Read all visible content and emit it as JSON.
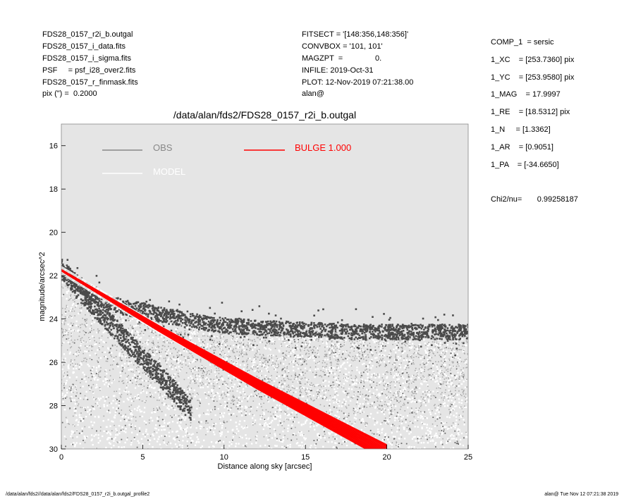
{
  "header_left": [
    "FDS28_0157_r2i_b.outgal",
    "FDS28_0157_i_data.fits",
    "FDS28_0157_i_sigma.fits",
    "PSF     = psf_i28_over2.fits",
    "FDS28_0157_r_finmask.fits",
    "pix (\") =  0.2000"
  ],
  "header_mid": [
    "FITSECT = '[148:356,148:356]'",
    "CONVBOX = '101, 101'",
    "MAGZPT  =               0.",
    "INFILE: 2019-Oct-31",
    "PLOT: 12-Nov-2019 07:21:38.00",
    "alan@"
  ],
  "header_right": [
    "COMP_1  = sersic",
    "1_XC    = [253.7360] pix",
    "1_YC    = [253.9580] pix",
    "1_MAG    = 17.9997",
    "1_RE    = [18.5312] pix",
    "1_N     = [1.3362]",
    "1_AR    = [0.9051]",
    "1_PA    = [-34.6650]",
    "",
    "Chi2/nu=       0.99258187"
  ],
  "footer_left": "/data/alan/fds2//data/alan/fds2/FDS28_0157_r2i_b.outgal_profile2",
  "footer_right": "alan@  Tue Nov 12 07:21:38 2019",
  "chart_data": {
    "type": "scatter",
    "title": "/data/alan/fds2/FDS28_0157_r2i_b.outgal",
    "xlabel": "Distance along sky [arcsec]",
    "ylabel": "magnitude/arcsec^2",
    "xlim": [
      0,
      25
    ],
    "ylim": [
      30,
      15
    ],
    "y_inverted": true,
    "xticks": [
      0,
      5,
      10,
      15,
      20,
      25
    ],
    "yticks": [
      16,
      18,
      20,
      22,
      24,
      26,
      28,
      30
    ],
    "grid": false,
    "background": "#e5e5e5",
    "legend": [
      {
        "name": "OBS",
        "color": "#888888"
      },
      {
        "name": "MODEL",
        "color": "#ffffff"
      },
      {
        "name": "BULGE  1.000",
        "color": "#ff0000"
      }
    ],
    "series": [
      {
        "name": "OBS",
        "color": "#444444",
        "description_of_trend": "upper envelope",
        "x": [
          0,
          1,
          2,
          3,
          4,
          5,
          6,
          8,
          10,
          12,
          15,
          18,
          20,
          22,
          25
        ],
        "y": [
          21.7,
          22.3,
          22.9,
          23.3,
          23.5,
          23.6,
          23.8,
          24.1,
          24.3,
          24.4,
          24.5,
          24.6,
          24.6,
          24.6,
          24.6
        ]
      },
      {
        "name": "OBS",
        "color": "#444444",
        "x": [
          0,
          1,
          2,
          3,
          4,
          5,
          6,
          7,
          8
        ],
        "y": [
          21.7,
          22.5,
          23.4,
          24.2,
          25.0,
          25.8,
          26.6,
          27.4,
          28.3
        ]
      },
      {
        "name": "MODEL",
        "color": "#ffffff",
        "x": [
          0,
          2,
          4,
          6,
          8,
          10,
          12,
          14,
          16,
          18,
          20
        ],
        "y": [
          21.75,
          22.65,
          23.55,
          24.45,
          25.3,
          26.15,
          27.0,
          27.8,
          28.6,
          29.4,
          30.2
        ]
      },
      {
        "name": "BULGE  1.000",
        "color": "#ff0000",
        "x": [
          0,
          2,
          4,
          6,
          8,
          10,
          12,
          14,
          16,
          18,
          20
        ],
        "y": [
          21.75,
          22.65,
          23.55,
          24.45,
          25.3,
          26.15,
          27.0,
          27.8,
          28.6,
          29.4,
          30.2
        ]
      }
    ]
  }
}
